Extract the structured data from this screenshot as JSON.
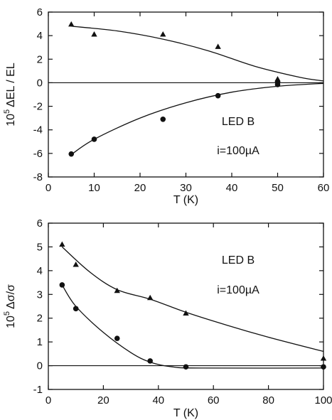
{
  "chart_data": [
    {
      "type": "scatter",
      "xlabel": "T (K)",
      "ylabel_base": "10",
      "ylabel_exp": "5",
      "ylabel_rest": "ΔEL / EL",
      "xlim": [
        0,
        60
      ],
      "ylim": [
        -8,
        6
      ],
      "x_ticks": [
        0,
        10,
        20,
        30,
        40,
        50,
        60
      ],
      "y_ticks": [
        -8,
        -6,
        -4,
        -2,
        0,
        2,
        4,
        6
      ],
      "x_tick_labels": [
        "0",
        "10",
        "20",
        "30",
        "40",
        "50",
        "60"
      ],
      "y_tick_labels": [
        "-8",
        "-6",
        "-4",
        "-2",
        "0",
        "2",
        "4",
        "6"
      ],
      "annotation_line1": "LED B",
      "annotation_line2": "i=100µA",
      "zero_line": true,
      "grid": false,
      "series": [
        {
          "marker": "triangle",
          "points": [
            [
              5,
              4.95
            ],
            [
              10,
              4.1
            ],
            [
              25,
              4.1
            ],
            [
              37,
              3.05
            ],
            [
              50,
              0.3
            ]
          ],
          "curve": [
            [
              5,
              4.8
            ],
            [
              15,
              4.4
            ],
            [
              25,
              3.7
            ],
            [
              35,
              2.7
            ],
            [
              45,
              1.4
            ],
            [
              55,
              0.45
            ],
            [
              60,
              0.15
            ]
          ]
        },
        {
          "marker": "circle",
          "points": [
            [
              5,
              -6.05
            ],
            [
              10,
              -4.8
            ],
            [
              25,
              -3.1
            ],
            [
              37,
              -1.1
            ],
            [
              50,
              0.05
            ],
            [
              50,
              -0.15
            ]
          ],
          "curve": [
            [
              5,
              -6.1
            ],
            [
              10,
              -4.8
            ],
            [
              20,
              -3.0
            ],
            [
              30,
              -1.7
            ],
            [
              40,
              -0.8
            ],
            [
              50,
              -0.3
            ],
            [
              60,
              -0.05
            ]
          ]
        }
      ]
    },
    {
      "type": "scatter",
      "xlabel": "T (K)",
      "ylabel_base": "10",
      "ylabel_exp": "5",
      "ylabel_rest": "Δσ/σ",
      "xlim": [
        0,
        100
      ],
      "ylim": [
        -1,
        6
      ],
      "x_ticks": [
        0,
        20,
        40,
        60,
        80,
        100
      ],
      "y_ticks": [
        -1,
        0,
        1,
        2,
        3,
        4,
        5,
        6
      ],
      "x_tick_labels": [
        "0",
        "20",
        "40",
        "60",
        "80",
        "100"
      ],
      "y_tick_labels": [
        "-1",
        "0",
        "1",
        "2",
        "3",
        "4",
        "5",
        "6"
      ],
      "annotation_line1": "LED B",
      "annotation_line2": "i=100µA",
      "zero_line": true,
      "grid": false,
      "series": [
        {
          "marker": "triangle",
          "points": [
            [
              5,
              5.1
            ],
            [
              10,
              4.25
            ],
            [
              25,
              3.15
            ],
            [
              37,
              2.85
            ],
            [
              50,
              2.2
            ],
            [
              100,
              0.3
            ]
          ],
          "curve": [
            [
              5,
              5.0
            ],
            [
              15,
              3.95
            ],
            [
              25,
              3.2
            ],
            [
              37,
              2.8
            ],
            [
              50,
              2.25
            ],
            [
              65,
              1.7
            ],
            [
              80,
              1.2
            ],
            [
              100,
              0.6
            ]
          ]
        },
        {
          "marker": "circle",
          "points": [
            [
              5,
              3.4
            ],
            [
              10,
              2.4
            ],
            [
              25,
              1.15
            ],
            [
              37,
              0.2
            ],
            [
              50,
              -0.05
            ],
            [
              100,
              -0.05
            ]
          ],
          "curve": [
            [
              5,
              3.4
            ],
            [
              10,
              2.5
            ],
            [
              20,
              1.4
            ],
            [
              30,
              0.55
            ],
            [
              37,
              0.15
            ],
            [
              45,
              -0.05
            ],
            [
              55,
              -0.1
            ],
            [
              100,
              -0.1
            ]
          ]
        }
      ]
    }
  ]
}
